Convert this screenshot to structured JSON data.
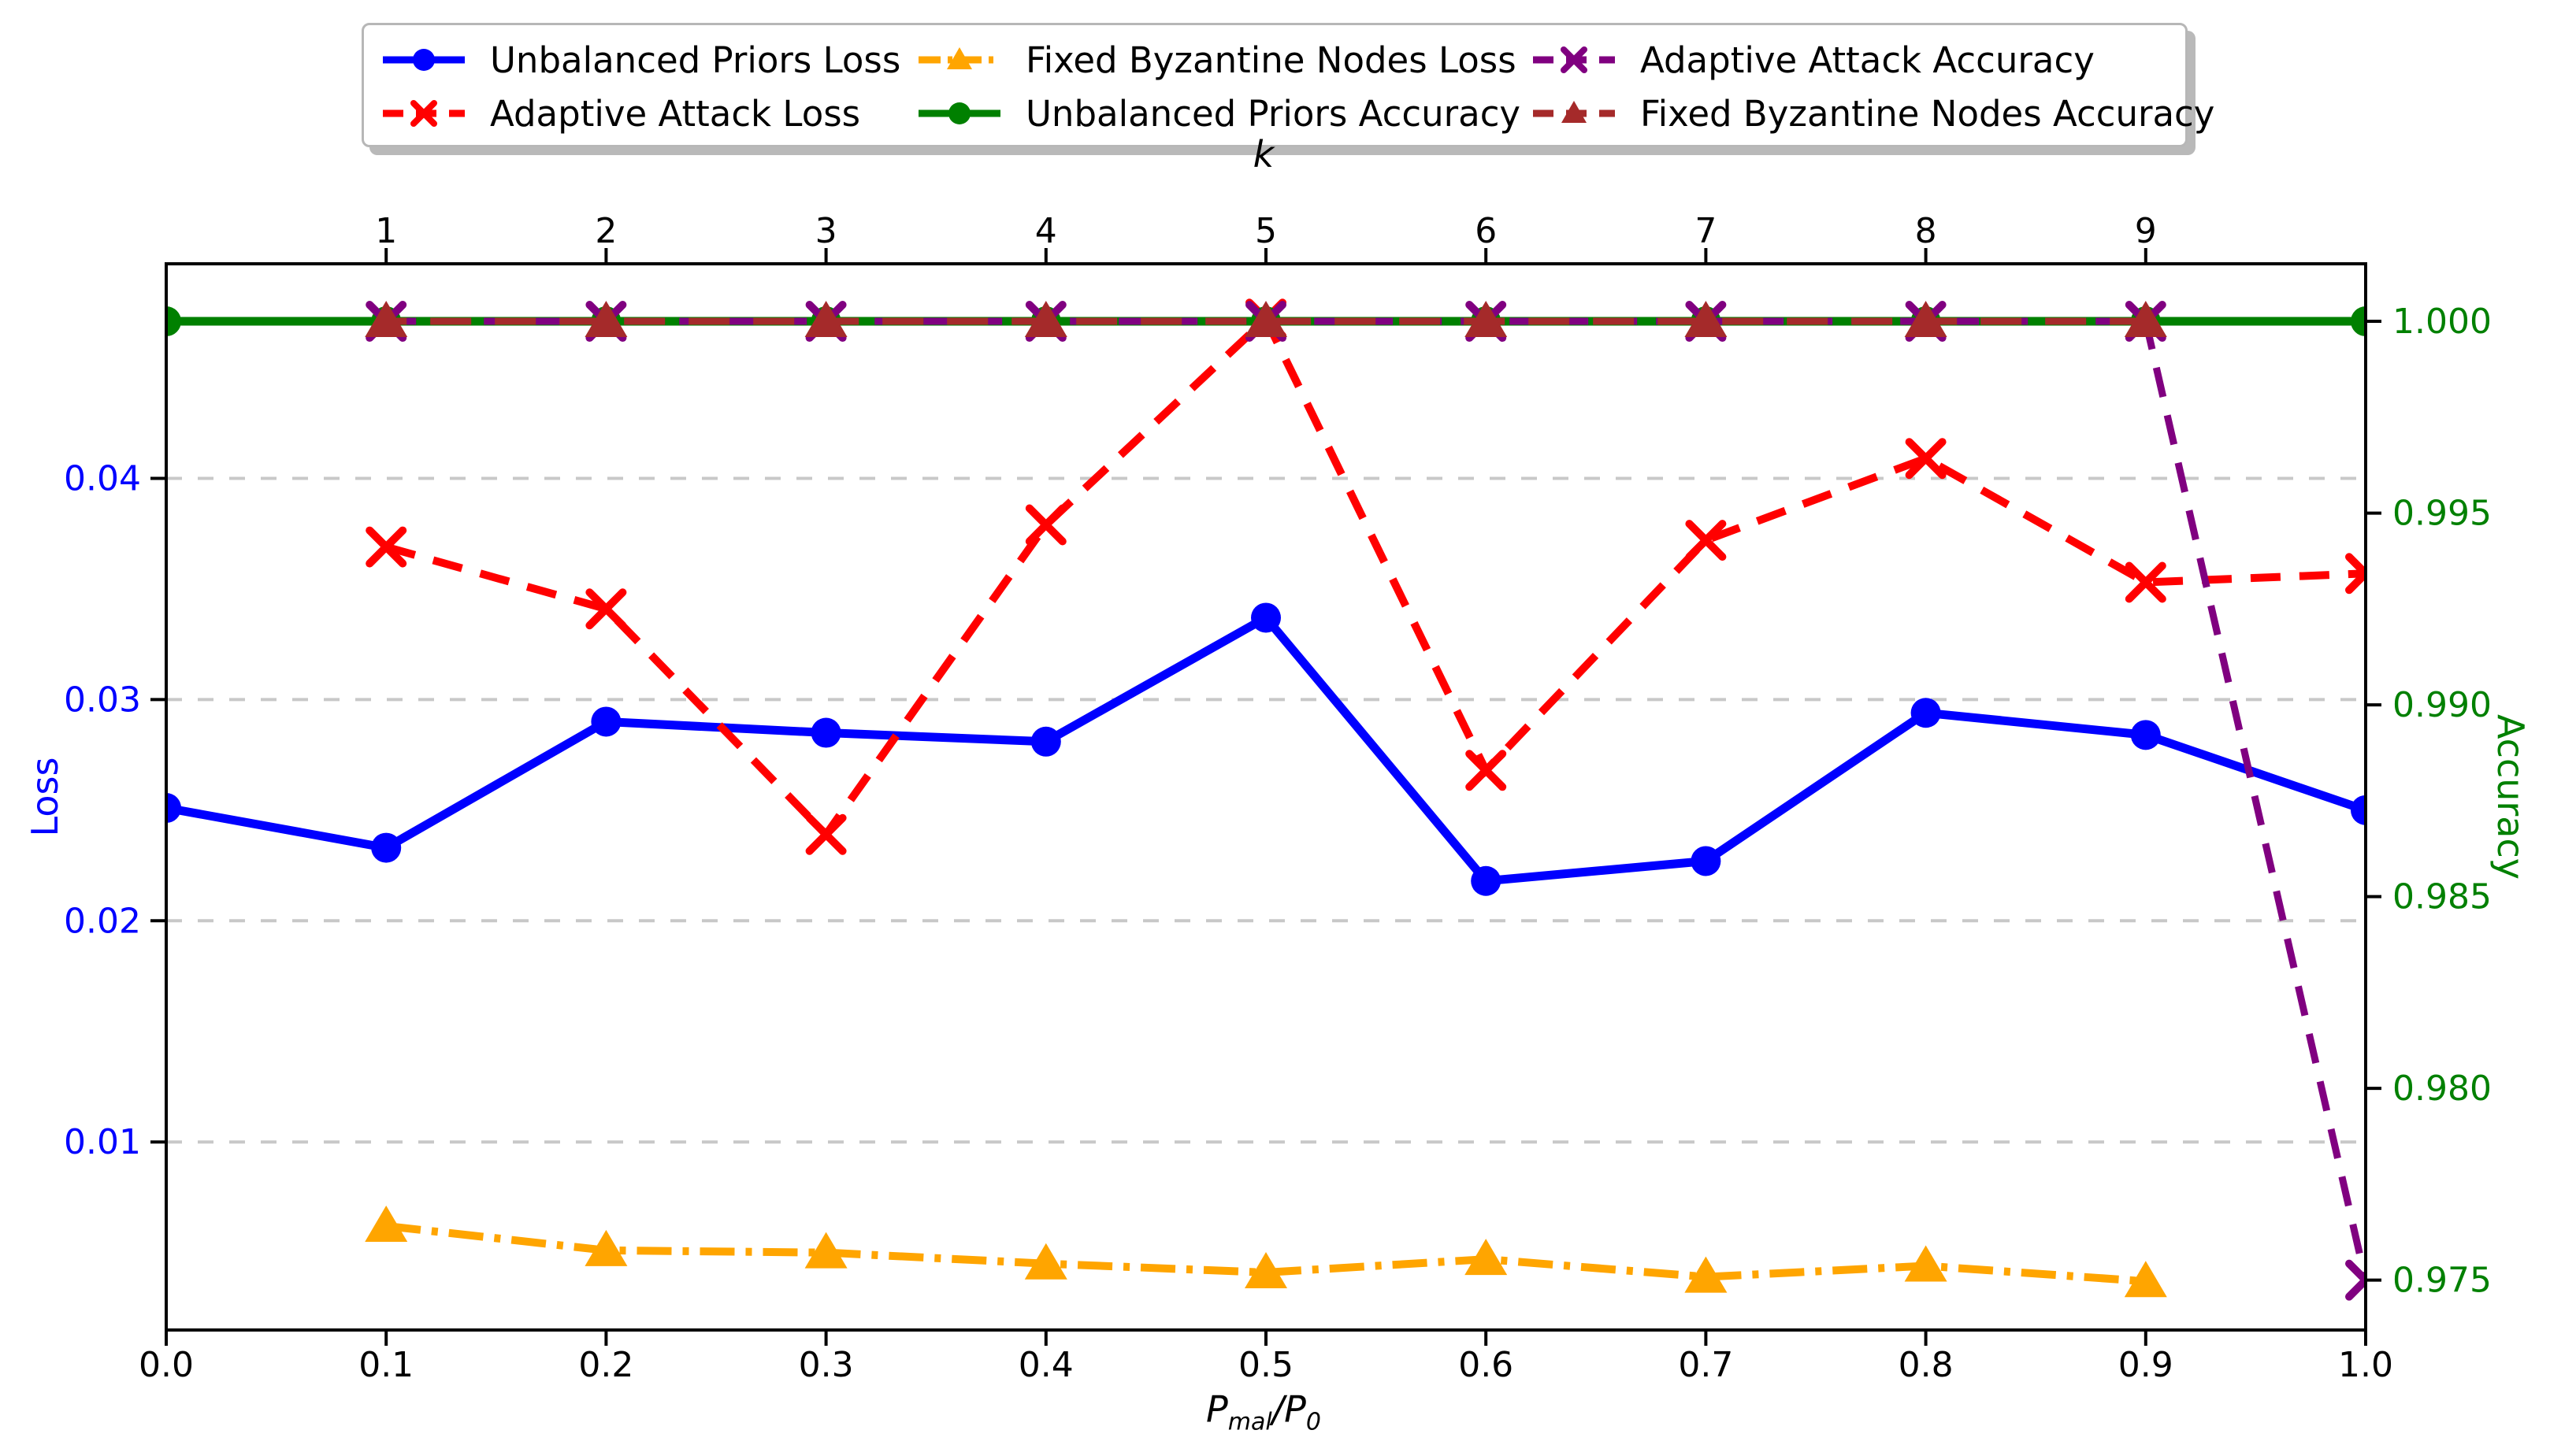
{
  "figure": {
    "background": "#ffffff"
  },
  "legend": {
    "columns": 3,
    "entries": [
      "Unbalanced Priors Loss",
      "Adaptive Attack Loss",
      "Fixed Byzantine Nodes Loss",
      "Unbalanced Priors Accuracy",
      "Adaptive Attack Accuracy",
      "Fixed Byzantine Nodes Accuracy"
    ]
  },
  "chart_data": {
    "type": "line",
    "title": "",
    "grid": "horizontal dashed gridlines at left-axis (Loss) ticks",
    "grid_color": "#c8c8c8",
    "legend_position": "top center, 3 columns, fancybox with shadow",
    "axes": {
      "bottom": {
        "label_display": "P_mal/P_0",
        "label_parts": {
          "p1": "P",
          "sub1": "mal",
          "p2": "/P",
          "sub2": "0"
        },
        "tick_values": [
          0.0,
          0.1,
          0.2,
          0.3,
          0.4,
          0.5,
          0.6,
          0.7,
          0.8,
          0.9,
          1.0
        ],
        "tick_labels": [
          "0.0",
          "0.1",
          "0.2",
          "0.3",
          "0.4",
          "0.5",
          "0.6",
          "0.7",
          "0.8",
          "0.9",
          "1.0"
        ],
        "range": [
          0.0,
          1.0
        ],
        "color": "#000000"
      },
      "top": {
        "label": "k",
        "tick_values": [
          0.1,
          0.2,
          0.3,
          0.4,
          0.5,
          0.6,
          0.7,
          0.8,
          0.9
        ],
        "tick_labels": [
          "1",
          "2",
          "3",
          "4",
          "5",
          "6",
          "7",
          "8",
          "9"
        ],
        "color": "#000000"
      },
      "left": {
        "label": "Loss",
        "color": "#0000ff",
        "tick_values": [
          0.01,
          0.02,
          0.03,
          0.04
        ],
        "tick_labels": [
          "0.01",
          "0.02",
          "0.03",
          "0.04"
        ],
        "range": [
          0.0015,
          0.0497
        ]
      },
      "right": {
        "label": "Accuracy",
        "color": "#008000",
        "tick_values": [
          0.975,
          0.98,
          0.985,
          0.99,
          0.995,
          1.0
        ],
        "tick_labels": [
          "0.975",
          "0.980",
          "0.985",
          "0.990",
          "0.995",
          "1.000"
        ],
        "range": [
          0.9737,
          1.0015
        ]
      }
    },
    "series": [
      {
        "name": "Unbalanced Priors Loss",
        "axis": "loss",
        "color": "#0000ff",
        "linestyle": "solid",
        "marker": "circle",
        "x": [
          0.0,
          0.1,
          0.2,
          0.3,
          0.4,
          0.5,
          0.6,
          0.7,
          0.8,
          0.9,
          1.0
        ],
        "values": [
          0.0251,
          0.0233,
          0.029,
          0.0285,
          0.0281,
          0.0337,
          0.0218,
          0.0227,
          0.0294,
          0.0284,
          0.025
        ]
      },
      {
        "name": "Adaptive Attack Loss",
        "axis": "loss",
        "color": "#ff0000",
        "linestyle": "dashed",
        "marker": "x",
        "x": [
          0.1,
          0.2,
          0.3,
          0.4,
          0.5,
          0.6,
          0.7,
          0.8,
          0.9,
          1.0
        ],
        "values": [
          0.0369,
          0.0341,
          0.0239,
          0.0379,
          0.0472,
          0.0268,
          0.0372,
          0.0409,
          0.0353,
          0.0357
        ]
      },
      {
        "name": "Fixed Byzantine Nodes Loss",
        "axis": "loss",
        "color": "#ffa500",
        "linestyle": "dashdot",
        "marker": "triangle",
        "x": [
          0.1,
          0.2,
          0.3,
          0.4,
          0.5,
          0.6,
          0.7,
          0.8,
          0.9
        ],
        "values": [
          0.0062,
          0.0051,
          0.005,
          0.0045,
          0.0041,
          0.0047,
          0.0039,
          0.0044,
          0.0037
        ]
      },
      {
        "name": "Unbalanced Priors Accuracy",
        "axis": "accuracy",
        "color": "#008000",
        "linestyle": "solid",
        "marker": "circle",
        "x": [
          0.0,
          0.1,
          0.2,
          0.3,
          0.4,
          0.5,
          0.6,
          0.7,
          0.8,
          0.9,
          1.0
        ],
        "values": [
          1.0,
          1.0,
          1.0,
          1.0,
          1.0,
          1.0,
          1.0,
          1.0,
          1.0,
          1.0,
          1.0
        ]
      },
      {
        "name": "Adaptive Attack Accuracy",
        "axis": "accuracy",
        "color": "#800080",
        "linestyle": "dashed",
        "marker": "x",
        "x": [
          0.1,
          0.2,
          0.3,
          0.4,
          0.5,
          0.6,
          0.7,
          0.8,
          0.9,
          1.0
        ],
        "values": [
          1.0,
          1.0,
          1.0,
          1.0,
          1.0,
          1.0,
          1.0,
          1.0,
          1.0,
          0.975
        ]
      },
      {
        "name": "Fixed Byzantine Nodes Accuracy",
        "axis": "accuracy",
        "color": "#a52a2a",
        "linestyle": "dashed",
        "marker": "triangle",
        "x": [
          0.1,
          0.2,
          0.3,
          0.4,
          0.5,
          0.6,
          0.7,
          0.8,
          0.9
        ],
        "values": [
          1.0,
          1.0,
          1.0,
          1.0,
          1.0,
          1.0,
          1.0,
          1.0,
          1.0
        ]
      }
    ]
  }
}
